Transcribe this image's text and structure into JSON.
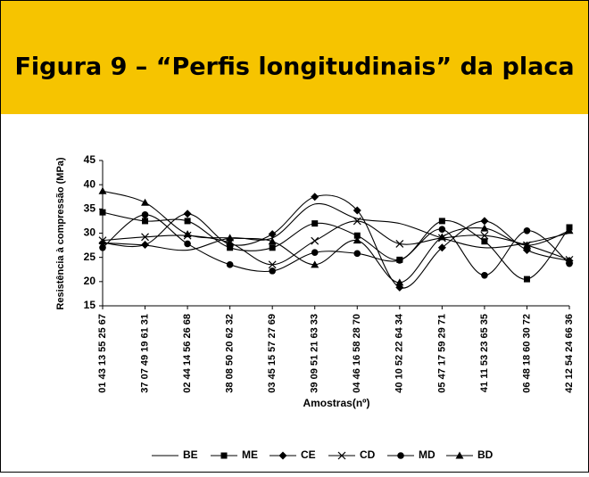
{
  "chart_data": {
    "type": "line",
    "title": "Figura 9 – “Perfis longitudinais” da placa",
    "x_label": "Amostras(nº)",
    "y_label": "Resistência à compressão (MPa)",
    "categories": [
      "01 43 13 55 25 67",
      "37 07 49 19 61 31",
      "02 44 14 56 26 68",
      "38 08 50 20 62 32",
      "03 45 15 57 27 69",
      "39 09 51 21 63 33",
      "04 46 16 58 28 70",
      "40 10 52 22 64 34",
      "05 47 17 59 29 71",
      "41 11 53 23 65 35",
      "06 48 18 60 30 72",
      "42 12 54 24 66 36"
    ],
    "series": [
      {
        "name": "BE",
        "color": "#000000",
        "marker": "none",
        "values": [
          28,
          27.5,
          26.5,
          29,
          29,
          36,
          33,
          32,
          29,
          27,
          28,
          30
        ]
      },
      {
        "name": "ME",
        "color": "#000000",
        "marker": "square",
        "values": [
          34.3,
          32.5,
          32.5,
          27,
          27,
          32,
          29.5,
          24.5,
          32.5,
          28.3,
          20.5,
          31.2
        ]
      },
      {
        "name": "CE",
        "color": "#000000",
        "marker": "diamond",
        "values": [
          28,
          27.6,
          34,
          27.7,
          29.8,
          37.5,
          34.7,
          18.8,
          27,
          32.5,
          26.5,
          24.3
        ]
      },
      {
        "name": "CD",
        "color": "#000000",
        "marker": "x",
        "values": [
          28.5,
          29.2,
          29.5,
          28,
          23.5,
          28.4,
          32.5,
          27.8,
          29,
          29.5,
          27.5,
          24.5
        ]
      },
      {
        "name": "MD",
        "color": "#000000",
        "marker": "circle",
        "values": [
          27,
          33.8,
          27.8,
          23.5,
          22.2,
          26,
          25.8,
          24.4,
          30.8,
          21.3,
          30.5,
          23.7
        ]
      },
      {
        "name": "BD",
        "color": "#000000",
        "marker": "triangle",
        "values": [
          38.7,
          36.3,
          29.8,
          29,
          28.3,
          23.5,
          28.5,
          19.8,
          29.2,
          31,
          27.5,
          30.5
        ]
      }
    ],
    "ylim": [
      15,
      45
    ],
    "yticks": [
      15,
      20,
      25,
      30,
      35,
      40,
      45
    ],
    "grid": false,
    "header_color": "#f6c400",
    "legend": "bottom"
  }
}
